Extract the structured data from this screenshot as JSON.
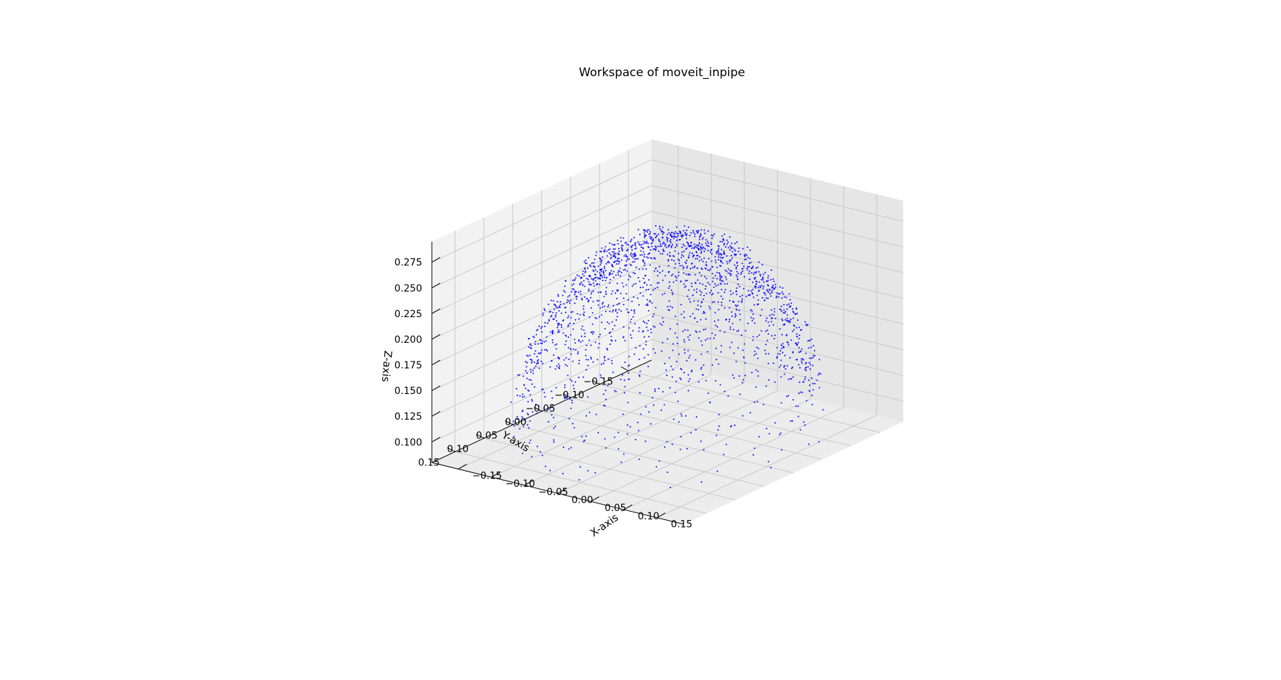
{
  "chart_data": {
    "type": "scatter",
    "projection": "3d",
    "title": "Workspace of moveit_inpipe",
    "xlabel": "X-axis",
    "ylabel": "Y-axis",
    "zlabel": "Z-axis",
    "xlim": [
      -0.19,
      0.19
    ],
    "ylim": [
      -0.19,
      0.19
    ],
    "zlim": [
      0.08,
      0.295
    ],
    "x_ticks": [
      "−0.15",
      "−0.10",
      "−0.05",
      "0.00",
      "0.05",
      "0.10",
      "0.15"
    ],
    "y_ticks": [
      "−0.15",
      "−0.10",
      "−0.05",
      "0.00",
      "0.05",
      "0.10",
      "0.15"
    ],
    "z_ticks": [
      "0.100",
      "0.125",
      "0.150",
      "0.175",
      "0.200",
      "0.225",
      "0.250",
      "0.275"
    ],
    "x_tick_values": [
      -0.15,
      -0.1,
      -0.05,
      0.0,
      0.05,
      0.1,
      0.15
    ],
    "y_tick_values": [
      -0.15,
      -0.1,
      -0.05,
      0.0,
      0.05,
      0.1,
      0.15
    ],
    "z_tick_values": [
      0.1,
      0.125,
      0.15,
      0.175,
      0.2,
      0.225,
      0.25,
      0.275
    ],
    "grid": true,
    "legend": "none",
    "series": [
      {
        "color": "#0000ff",
        "marker": "point",
        "distribution": "half-ellipsoid shell",
        "center": [
          0.0,
          0.0,
          0.08
        ],
        "radius_x": 0.185,
        "radius_y": 0.185,
        "radius_z": 0.205,
        "point_count": 2000
      }
    ]
  },
  "colors": {
    "points": "#0000ff",
    "pane_left": "#f2f2f2",
    "pane_right": "#e6e6e6",
    "pane_floor": "#ececec",
    "grid": "#c8c8c8",
    "axis": "#000000"
  }
}
